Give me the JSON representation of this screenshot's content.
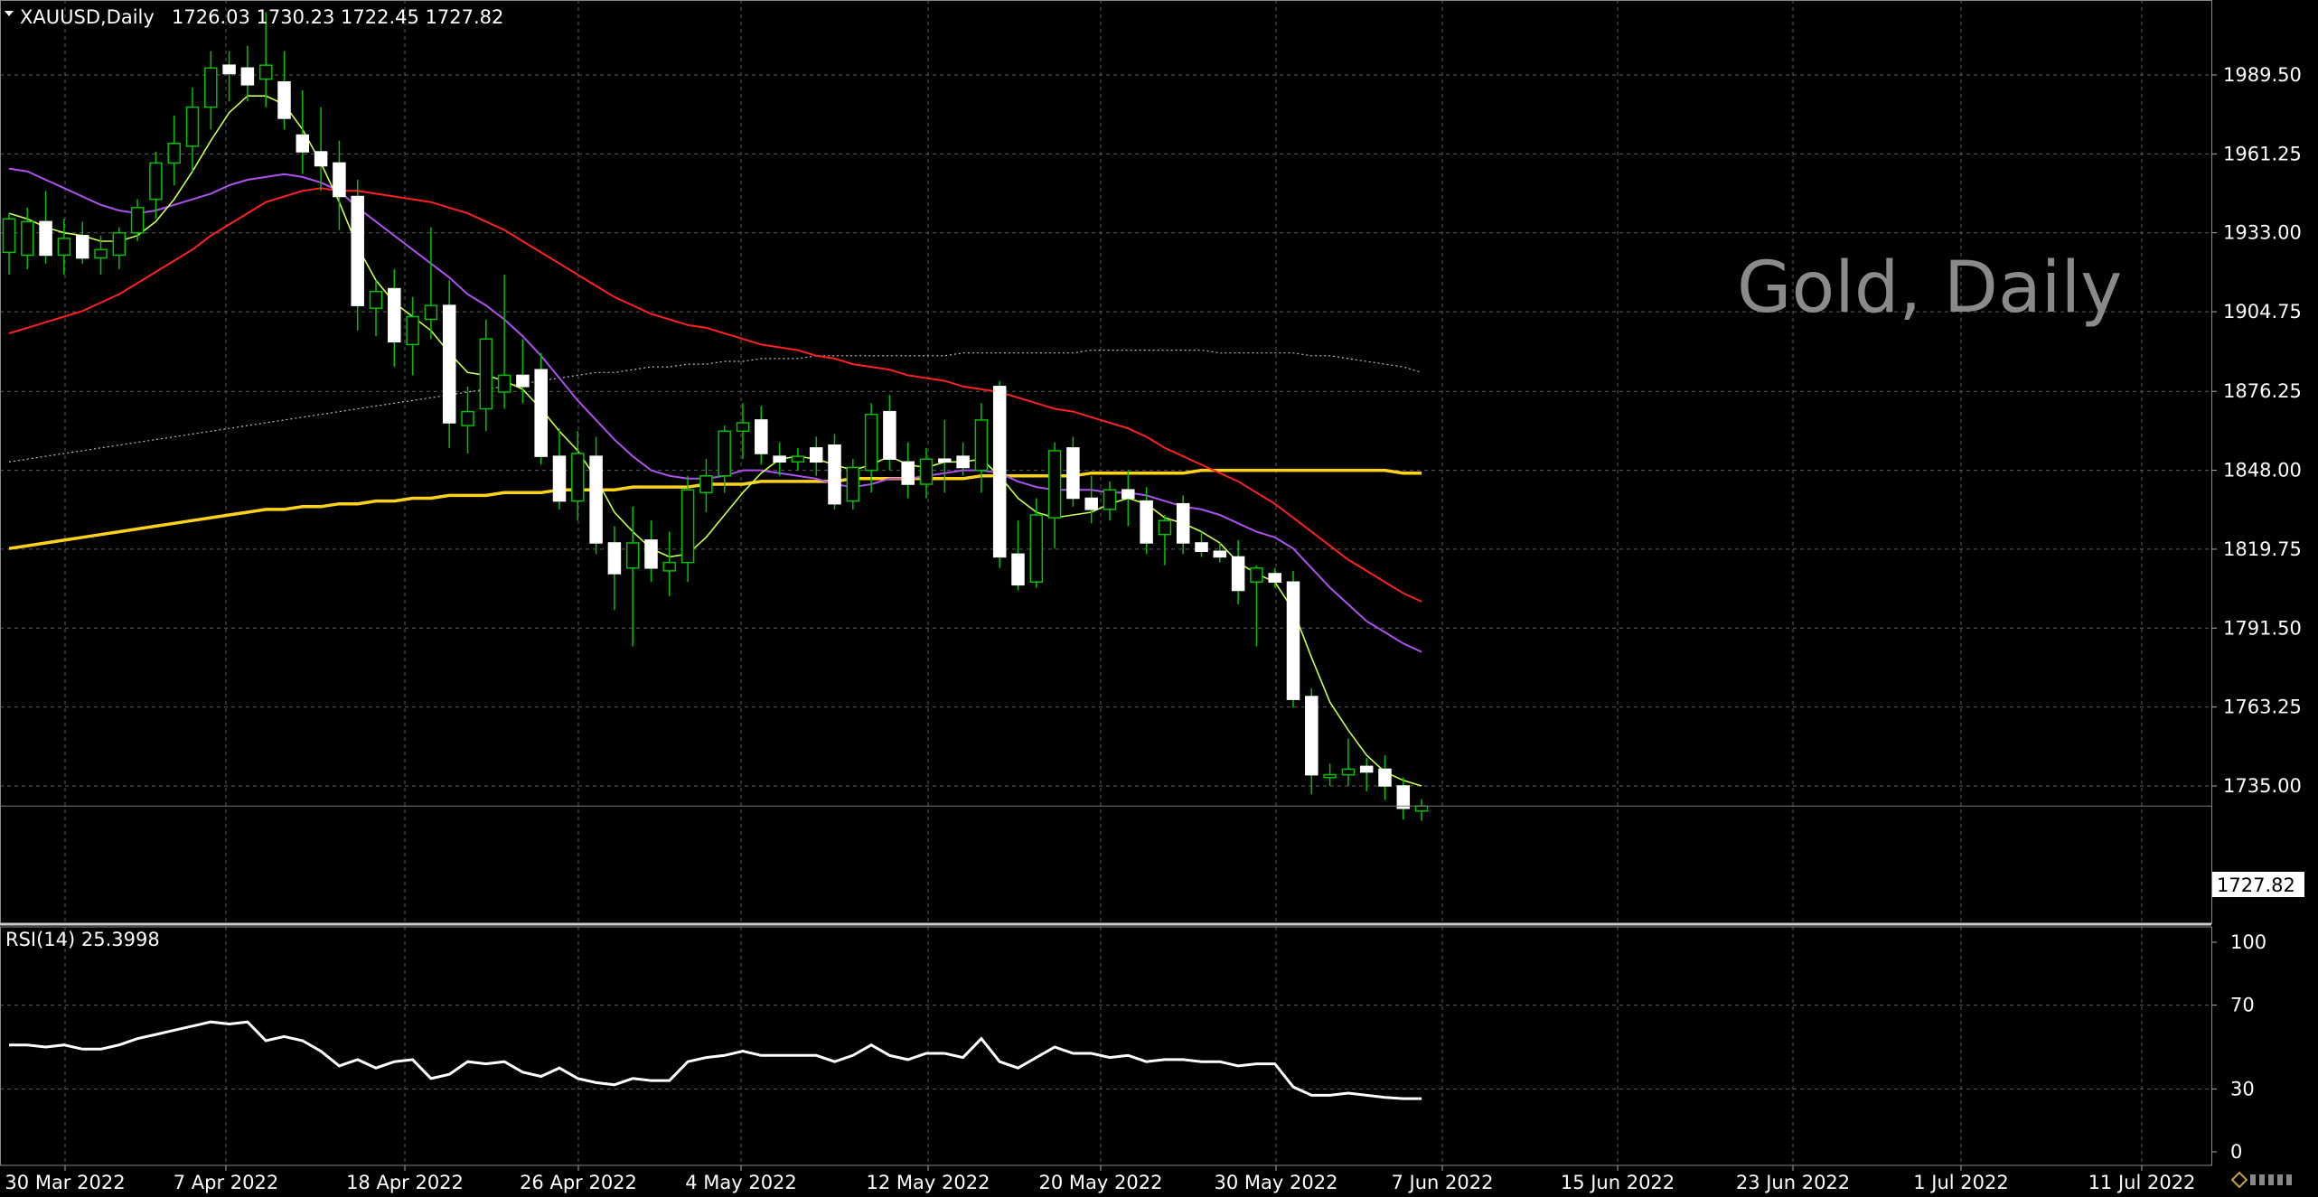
{
  "header": {
    "symbol": "XAUUSD,Daily",
    "ohlc": "1726.03 1730.23 1722.45 1727.82"
  },
  "watermark": "Gold, Daily",
  "price_axis": {
    "ticks": [
      "1989.50",
      "1961.25",
      "1933.00",
      "1904.75",
      "1876.25",
      "1848.00",
      "1819.75",
      "1791.50",
      "1763.25",
      "1735.00"
    ],
    "current_price": "1727.82"
  },
  "rsi_panel": {
    "label": "RSI(14) 25.3998",
    "ticks": [
      "100",
      "70",
      "30",
      "0"
    ]
  },
  "time_axis": {
    "labels": [
      "30 Mar 2022",
      "7 Apr 2022",
      "18 Apr 2022",
      "26 Apr 2022",
      "4 May 2022",
      "12 May 2022",
      "20 May 2022",
      "30 May 2022",
      "7 Jun 2022",
      "15 Jun 2022",
      "23 Jun 2022",
      "1 Jul 2022",
      "11 Jul 2022"
    ]
  },
  "colors": {
    "background": "#000000",
    "grid": "#5a5a5a",
    "candle_bull": "#000000",
    "candle_bear": "#ffffff",
    "wick": "#00c000",
    "ma_fast": "#c8ff4c",
    "ma_mid": "#b050f0",
    "ma_slow": "#ff2020",
    "ma_200": "#ffd21a",
    "ma_dotted": "#bbbbbb",
    "rsi": "#ffffff",
    "watermark": "#8a8a8a"
  },
  "chart_data": [
    {
      "type": "candlestick",
      "title": "XAUUSD,Daily",
      "ylim": [
        1708,
        2012
      ],
      "candles": [
        {
          "o": 1926,
          "h": 1940,
          "l": 1918,
          "c": 1938
        },
        {
          "o": 1925,
          "h": 1942,
          "l": 1920,
          "c": 1937
        },
        {
          "o": 1937,
          "h": 1948,
          "l": 1922,
          "c": 1925
        },
        {
          "o": 1925,
          "h": 1938,
          "l": 1918,
          "c": 1931
        },
        {
          "o": 1932,
          "h": 1937,
          "l": 1922,
          "c": 1924
        },
        {
          "o": 1924,
          "h": 1932,
          "l": 1918,
          "c": 1927
        },
        {
          "o": 1925,
          "h": 1935,
          "l": 1920,
          "c": 1933
        },
        {
          "o": 1933,
          "h": 1945,
          "l": 1930,
          "c": 1942
        },
        {
          "o": 1945,
          "h": 1962,
          "l": 1938,
          "c": 1958
        },
        {
          "o": 1958,
          "h": 1975,
          "l": 1950,
          "c": 1965
        },
        {
          "o": 1964,
          "h": 1985,
          "l": 1955,
          "c": 1978
        },
        {
          "o": 1978,
          "h": 1998,
          "l": 1970,
          "c": 1992
        },
        {
          "o": 1993,
          "h": 1998,
          "l": 1980,
          "c": 1990
        },
        {
          "o": 1992,
          "h": 2000,
          "l": 1980,
          "c": 1986
        },
        {
          "o": 1988,
          "h": 2012,
          "l": 1978,
          "c": 1993
        },
        {
          "o": 1987,
          "h": 1998,
          "l": 1970,
          "c": 1974
        },
        {
          "o": 1968,
          "h": 1984,
          "l": 1954,
          "c": 1962
        },
        {
          "o": 1962,
          "h": 1978,
          "l": 1948,
          "c": 1957
        },
        {
          "o": 1958,
          "h": 1966,
          "l": 1934,
          "c": 1946
        },
        {
          "o": 1946,
          "h": 1952,
          "l": 1898,
          "c": 1907
        },
        {
          "o": 1906,
          "h": 1916,
          "l": 1896,
          "c": 1912
        },
        {
          "o": 1913,
          "h": 1920,
          "l": 1885,
          "c": 1894
        },
        {
          "o": 1893,
          "h": 1910,
          "l": 1882,
          "c": 1903
        },
        {
          "o": 1902,
          "h": 1935,
          "l": 1895,
          "c": 1907
        },
        {
          "o": 1907,
          "h": 1916,
          "l": 1856,
          "c": 1865
        },
        {
          "o": 1864,
          "h": 1878,
          "l": 1854,
          "c": 1869
        },
        {
          "o": 1870,
          "h": 1902,
          "l": 1862,
          "c": 1895
        },
        {
          "o": 1876,
          "h": 1918,
          "l": 1870,
          "c": 1882
        },
        {
          "o": 1882,
          "h": 1895,
          "l": 1872,
          "c": 1878
        },
        {
          "o": 1884,
          "h": 1890,
          "l": 1850,
          "c": 1853
        },
        {
          "o": 1853,
          "h": 1863,
          "l": 1834,
          "c": 1837
        },
        {
          "o": 1837,
          "h": 1862,
          "l": 1830,
          "c": 1854
        },
        {
          "o": 1853,
          "h": 1860,
          "l": 1818,
          "c": 1822
        },
        {
          "o": 1822,
          "h": 1828,
          "l": 1798,
          "c": 1811
        },
        {
          "o": 1813,
          "h": 1835,
          "l": 1785,
          "c": 1822
        },
        {
          "o": 1823,
          "h": 1830,
          "l": 1808,
          "c": 1813
        },
        {
          "o": 1812,
          "h": 1826,
          "l": 1803,
          "c": 1815
        },
        {
          "o": 1815,
          "h": 1846,
          "l": 1808,
          "c": 1841
        },
        {
          "o": 1840,
          "h": 1852,
          "l": 1833,
          "c": 1846
        },
        {
          "o": 1846,
          "h": 1864,
          "l": 1840,
          "c": 1862
        },
        {
          "o": 1862,
          "h": 1872,
          "l": 1852,
          "c": 1865
        },
        {
          "o": 1866,
          "h": 1871,
          "l": 1850,
          "c": 1854
        },
        {
          "o": 1853,
          "h": 1858,
          "l": 1846,
          "c": 1851
        },
        {
          "o": 1851,
          "h": 1856,
          "l": 1848,
          "c": 1853
        },
        {
          "o": 1856,
          "h": 1860,
          "l": 1846,
          "c": 1851
        },
        {
          "o": 1857,
          "h": 1861,
          "l": 1834,
          "c": 1836
        },
        {
          "o": 1837,
          "h": 1852,
          "l": 1834,
          "c": 1849
        },
        {
          "o": 1848,
          "h": 1872,
          "l": 1840,
          "c": 1868
        },
        {
          "o": 1869,
          "h": 1875,
          "l": 1848,
          "c": 1852
        },
        {
          "o": 1851,
          "h": 1858,
          "l": 1838,
          "c": 1843
        },
        {
          "o": 1843,
          "h": 1856,
          "l": 1838,
          "c": 1852
        },
        {
          "o": 1852,
          "h": 1866,
          "l": 1840,
          "c": 1851
        },
        {
          "o": 1853,
          "h": 1858,
          "l": 1846,
          "c": 1849
        },
        {
          "o": 1848,
          "h": 1872,
          "l": 1840,
          "c": 1866
        },
        {
          "o": 1878,
          "h": 1880,
          "l": 1813,
          "c": 1817
        },
        {
          "o": 1818,
          "h": 1830,
          "l": 1805,
          "c": 1807
        },
        {
          "o": 1808,
          "h": 1838,
          "l": 1806,
          "c": 1832
        },
        {
          "o": 1831,
          "h": 1858,
          "l": 1820,
          "c": 1855
        },
        {
          "o": 1856,
          "h": 1860,
          "l": 1835,
          "c": 1838
        },
        {
          "o": 1838,
          "h": 1846,
          "l": 1829,
          "c": 1834
        },
        {
          "o": 1834,
          "h": 1844,
          "l": 1830,
          "c": 1841
        },
        {
          "o": 1841,
          "h": 1848,
          "l": 1828,
          "c": 1838
        },
        {
          "o": 1837,
          "h": 1842,
          "l": 1818,
          "c": 1822
        },
        {
          "o": 1825,
          "h": 1832,
          "l": 1814,
          "c": 1830
        },
        {
          "o": 1836,
          "h": 1839,
          "l": 1818,
          "c": 1822
        },
        {
          "o": 1822,
          "h": 1826,
          "l": 1817,
          "c": 1819
        },
        {
          "o": 1819,
          "h": 1822,
          "l": 1815,
          "c": 1817
        },
        {
          "o": 1817,
          "h": 1823,
          "l": 1800,
          "c": 1805
        },
        {
          "o": 1808,
          "h": 1814,
          "l": 1785,
          "c": 1813
        },
        {
          "o": 1811,
          "h": 1813,
          "l": 1806,
          "c": 1808
        },
        {
          "o": 1808,
          "h": 1812,
          "l": 1763,
          "c": 1766
        },
        {
          "o": 1767,
          "h": 1770,
          "l": 1732,
          "c": 1739
        },
        {
          "o": 1738,
          "h": 1743,
          "l": 1735,
          "c": 1739
        },
        {
          "o": 1739,
          "h": 1752,
          "l": 1735,
          "c": 1741
        },
        {
          "o": 1742,
          "h": 1745,
          "l": 1733,
          "c": 1740
        },
        {
          "o": 1741,
          "h": 1746,
          "l": 1730,
          "c": 1735
        },
        {
          "o": 1735,
          "h": 1738,
          "l": 1723,
          "c": 1727
        },
        {
          "o": 1726.03,
          "h": 1730.23,
          "l": 1722.45,
          "c": 1727.82
        }
      ],
      "series": [
        {
          "type": "line",
          "values": [
            1940,
            1938,
            1935,
            1933,
            1932,
            1930,
            1930,
            1932,
            1937,
            1945,
            1955,
            1966,
            1976,
            1982,
            1982,
            1979,
            1970,
            1958,
            1944,
            1928,
            1916,
            1908,
            1903,
            1898,
            1890,
            1883,
            1882,
            1880,
            1877,
            1870,
            1862,
            1855,
            1845,
            1833,
            1826,
            1820,
            1817,
            1818,
            1824,
            1832,
            1840,
            1847,
            1852,
            1853,
            1852,
            1850,
            1848,
            1850,
            1853,
            1850,
            1849,
            1851,
            1851,
            1852,
            1846,
            1838,
            1833,
            1831,
            1832,
            1833,
            1836,
            1838,
            1836,
            1831,
            1829,
            1826,
            1822,
            1815,
            1811,
            1808,
            1798,
            1781,
            1765,
            1755,
            1746,
            1740,
            1737,
            1735
          ]
        },
        {
          "type": "line",
          "values": [
            1956,
            1955,
            1952,
            1949,
            1946,
            1943,
            1941,
            1940,
            1941,
            1943,
            1945,
            1947,
            1950,
            1952,
            1953,
            1954,
            1953,
            1951,
            1948,
            1942,
            1937,
            1932,
            1927,
            1922,
            1917,
            1911,
            1907,
            1902,
            1896,
            1889,
            1881,
            1873,
            1866,
            1859,
            1853,
            1848,
            1846,
            1845,
            1845,
            1846,
            1848,
            1848,
            1847,
            1846,
            1845,
            1843,
            1842,
            1843,
            1845,
            1845,
            1846,
            1847,
            1848,
            1848,
            1847,
            1844,
            1842,
            1841,
            1841,
            1841,
            1840,
            1840,
            1839,
            1837,
            1835,
            1834,
            1832,
            1829,
            1826,
            1824,
            1820,
            1813,
            1806,
            1800,
            1794,
            1790,
            1786,
            1783
          ]
        },
        {
          "type": "line",
          "values": [
            1897,
            1899,
            1901,
            1903,
            1905,
            1908,
            1911,
            1915,
            1919,
            1923,
            1927,
            1932,
            1936,
            1940,
            1944,
            1946,
            1948,
            1949,
            1948,
            1948,
            1947,
            1946,
            1945,
            1944,
            1942,
            1940,
            1937,
            1934,
            1930,
            1926,
            1922,
            1918,
            1914,
            1910,
            1907,
            1904,
            1902,
            1900,
            1899,
            1897,
            1895,
            1893,
            1892,
            1891,
            1889,
            1888,
            1886,
            1885,
            1884,
            1882,
            1881,
            1880,
            1878,
            1877,
            1876,
            1874,
            1872,
            1870,
            1869,
            1867,
            1865,
            1863,
            1860,
            1856,
            1853,
            1850,
            1847,
            1844,
            1840,
            1836,
            1831,
            1826,
            1821,
            1816,
            1812,
            1808,
            1804,
            1801
          ]
        },
        {
          "type": "line",
          "values": [
            1820,
            1821,
            1822,
            1823,
            1824,
            1825,
            1826,
            1827,
            1828,
            1829,
            1830,
            1831,
            1832,
            1833,
            1834,
            1834,
            1835,
            1835,
            1836,
            1836,
            1837,
            1837,
            1838,
            1838,
            1839,
            1839,
            1839,
            1840,
            1840,
            1840,
            1841,
            1841,
            1841,
            1841,
            1842,
            1842,
            1842,
            1842,
            1843,
            1843,
            1843,
            1844,
            1844,
            1844,
            1844,
            1844,
            1845,
            1845,
            1845,
            1845,
            1845,
            1845,
            1845,
            1846,
            1846,
            1846,
            1846,
            1846,
            1846,
            1847,
            1847,
            1847,
            1847,
            1847,
            1847,
            1848,
            1848,
            1848,
            1848,
            1848,
            1848,
            1848,
            1848,
            1848,
            1848,
            1848,
            1847,
            1847
          ]
        },
        {
          "type": "line",
          "values": [
            1851,
            1852,
            1853,
            1854,
            1855,
            1856,
            1857,
            1858,
            1859,
            1860,
            1861,
            1862,
            1863,
            1864,
            1865,
            1866,
            1867,
            1868,
            1869,
            1870,
            1871,
            1872,
            1873,
            1874,
            1875,
            1876,
            1877,
            1878,
            1879,
            1880,
            1881,
            1882,
            1883,
            1883,
            1884,
            1885,
            1885,
            1886,
            1886,
            1887,
            1887,
            1888,
            1888,
            1888,
            1889,
            1889,
            1889,
            1889,
            1889,
            1889,
            1889,
            1889,
            1890,
            1890,
            1890,
            1890,
            1890,
            1890,
            1890,
            1891,
            1891,
            1891,
            1891,
            1891,
            1891,
            1891,
            1890,
            1890,
            1890,
            1890,
            1890,
            1889,
            1889,
            1888,
            1887,
            1886,
            1885,
            1883
          ]
        }
      ]
    },
    {
      "type": "line",
      "title": "RSI(14) 25.3998",
      "ylim": [
        0,
        100
      ],
      "series": [
        {
          "name": "RSI(14)",
          "values": [
            51,
            51,
            50,
            51,
            49,
            49,
            51,
            54,
            56,
            58,
            60,
            62,
            61,
            62,
            53,
            55,
            53,
            48,
            41,
            44,
            40,
            43,
            44,
            35,
            37,
            43,
            42,
            43,
            38,
            36,
            40,
            35,
            33,
            32,
            35,
            34,
            34,
            43,
            45,
            46,
            48,
            46,
            46,
            46,
            46,
            43,
            46,
            51,
            46,
            44,
            47,
            47,
            45,
            54,
            43,
            40,
            45,
            50,
            47,
            47,
            45,
            46,
            43,
            44,
            44,
            43,
            43,
            41,
            42,
            42,
            31,
            27,
            27,
            28,
            27,
            26,
            25.4,
            25.4
          ]
        }
      ]
    }
  ]
}
